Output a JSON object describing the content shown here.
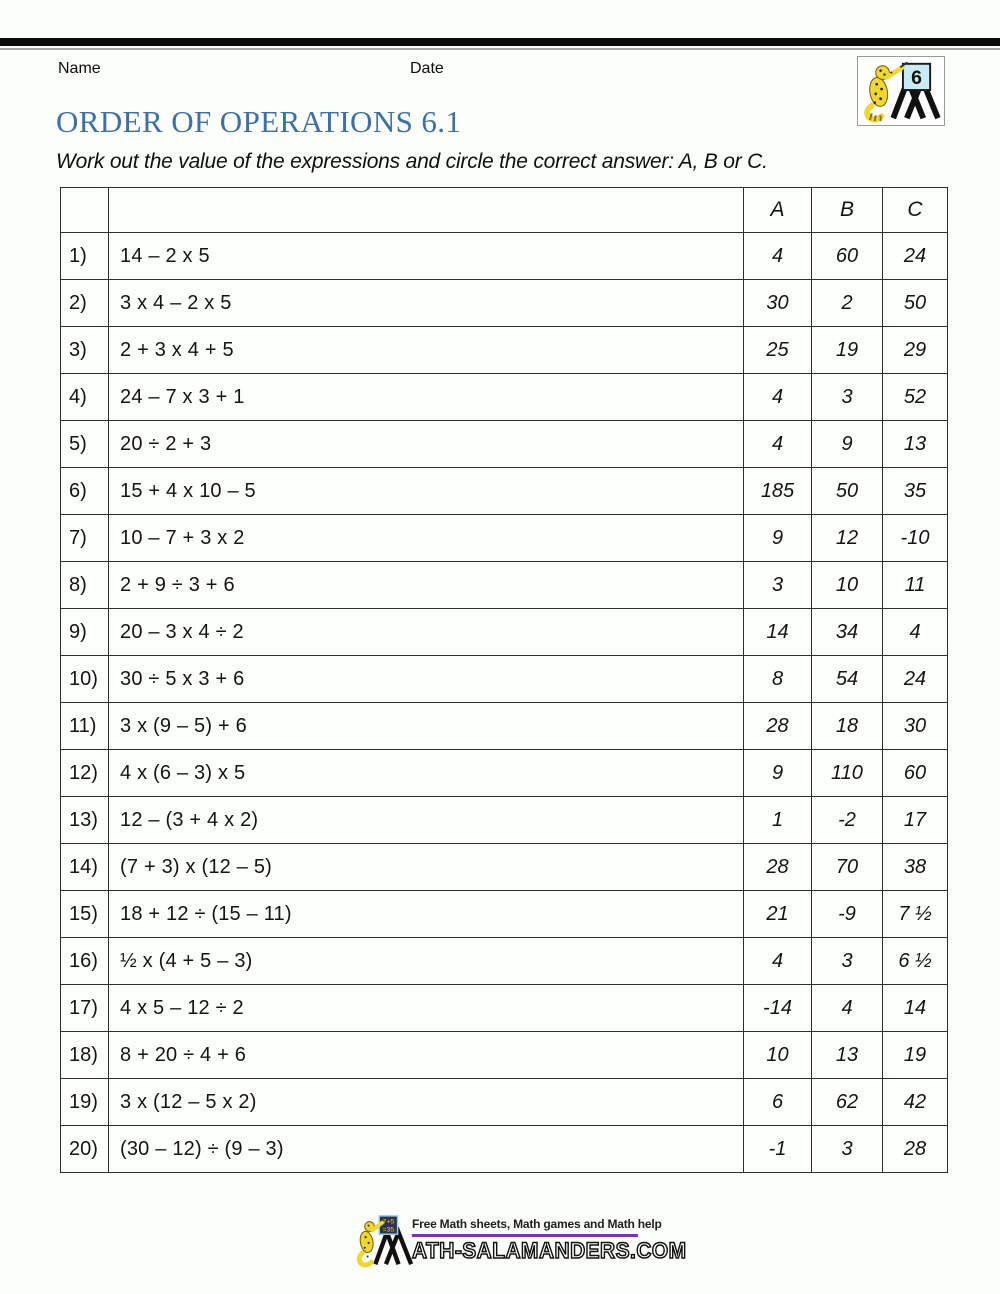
{
  "page": {
    "name_label": "Name",
    "date_label": "Date",
    "title": "ORDER OF OPERATIONS 6.1",
    "instruction": "Work out the value of the expressions and circle the correct answer: A, B or C.",
    "colors": {
      "title_blue": "#3E6FA8",
      "purple_rule": "#7D2FC4",
      "table_border": "#2e2e2e",
      "salamander_yellow": "#F0D72E",
      "grade_board_blue": "#C8ECF4",
      "footer_board_bg": "#2F3347",
      "footer_board_text": "#F3D23A"
    }
  },
  "logo": {
    "grade": "6"
  },
  "table": {
    "headers": [
      "A",
      "B",
      "C"
    ],
    "rows": [
      {
        "num": "1)",
        "expr": "14 – 2 x 5",
        "a": "4",
        "b": "60",
        "c": "24"
      },
      {
        "num": "2)",
        "expr": "3 x 4 – 2 x 5",
        "a": "30",
        "b": "2",
        "c": "50"
      },
      {
        "num": "3)",
        "expr": "2 + 3 x 4 + 5",
        "a": "25",
        "b": "19",
        "c": "29"
      },
      {
        "num": "4)",
        "expr": "24 – 7 x 3 + 1",
        "a": "4",
        "b": "3",
        "c": "52"
      },
      {
        "num": "5)",
        "expr": "20 ÷ 2 + 3",
        "a": "4",
        "b": "9",
        "c": "13"
      },
      {
        "num": "6)",
        "expr": "15 + 4 x 10 – 5",
        "a": "185",
        "b": "50",
        "c": "35"
      },
      {
        "num": "7)",
        "expr": "10 – 7 + 3 x 2",
        "a": "9",
        "b": "12",
        "c": "-10"
      },
      {
        "num": "8)",
        "expr": "2 + 9 ÷ 3 + 6",
        "a": "3",
        "b": "10",
        "c": "11"
      },
      {
        "num": "9)",
        "expr": "20 – 3 x 4 ÷ 2",
        "a": "14",
        "b": "34",
        "c": "4"
      },
      {
        "num": "10)",
        "expr": "30 ÷ 5 x 3 + 6",
        "a": "8",
        "b": "54",
        "c": "24"
      },
      {
        "num": "11)",
        "expr": "3 x (9 – 5) + 6",
        "a": "28",
        "b": "18",
        "c": "30"
      },
      {
        "num": "12)",
        "expr": "4 x (6 – 3) x 5",
        "a": "9",
        "b": "110",
        "c": "60"
      },
      {
        "num": "13)",
        "expr": "12 – (3 + 4 x 2)",
        "a": "1",
        "b": "-2",
        "c": "17"
      },
      {
        "num": "14)",
        "expr": "(7 + 3) x (12 – 5)",
        "a": "28",
        "b": "70",
        "c": "38"
      },
      {
        "num": "15)",
        "expr": "18 + 12 ÷ (15 – 11)",
        "a": "21",
        "b": "-9",
        "c": "7 ½"
      },
      {
        "num": "16)",
        "expr": "½ x (4 + 5 – 3)",
        "a": "4",
        "b": "3",
        "c": "6 ½"
      },
      {
        "num": "17)",
        "expr": "4 x 5 – 12 ÷ 2",
        "a": "-14",
        "b": "4",
        "c": "14"
      },
      {
        "num": "18)",
        "expr": "8 + 20 ÷ 4 + 6",
        "a": "10",
        "b": "13",
        "c": "19"
      },
      {
        "num": "19)",
        "expr": "3 x (12 – 5 x 2)",
        "a": "6",
        "b": "62",
        "c": "42"
      },
      {
        "num": "20)",
        "expr": "(30 – 12) ÷ (9 – 3)",
        "a": "-1",
        "b": "3",
        "c": "28"
      }
    ]
  },
  "footer": {
    "tagline": "Free Math sheets, Math games and Math help",
    "site": "ATH-SALAMANDERS.COM",
    "board_line1": "7+5",
    "board_line2": "=35"
  }
}
